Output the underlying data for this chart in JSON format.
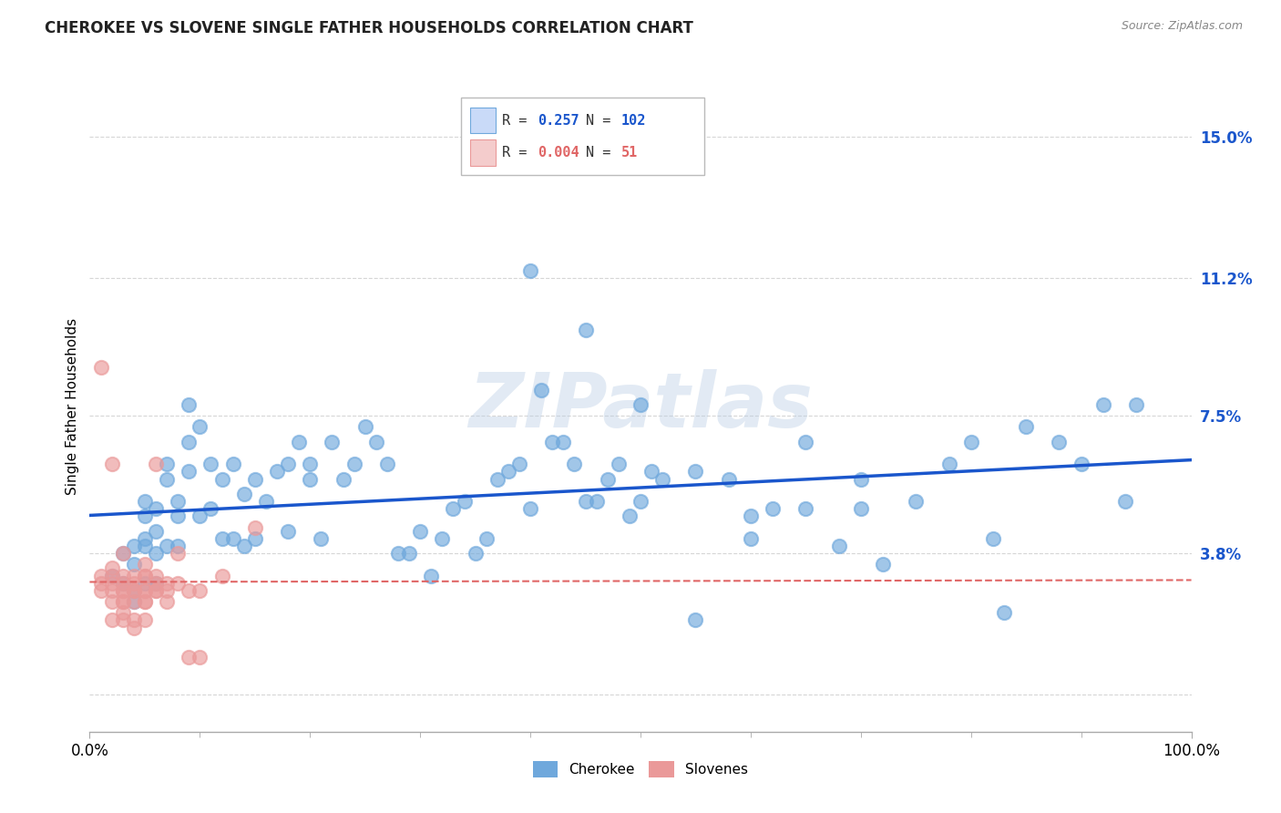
{
  "title": "CHEROKEE VS SLOVENE SINGLE FATHER HOUSEHOLDS CORRELATION CHART",
  "source": "Source: ZipAtlas.com",
  "ylabel": "Single Father Households",
  "ytick_values": [
    0.0,
    0.038,
    0.075,
    0.112,
    0.15
  ],
  "ytick_labels": [
    "",
    "3.8%",
    "7.5%",
    "11.2%",
    "15.0%"
  ],
  "xtick_values": [
    0.0,
    1.0
  ],
  "xtick_labels": [
    "0.0%",
    "100.0%"
  ],
  "xlim": [
    0.0,
    1.0
  ],
  "ylim": [
    -0.01,
    0.165
  ],
  "cherokee_R": 0.257,
  "cherokee_N": 102,
  "slovene_R": 0.004,
  "slovene_N": 51,
  "cherokee_color": "#6fa8dc",
  "slovene_color": "#ea9999",
  "cherokee_line_color": "#1a56cc",
  "slovene_line_color": "#e06666",
  "legend_cherokee_bg": "#c9daf8",
  "legend_slovene_bg": "#f4cccc",
  "background_color": "#ffffff",
  "grid_color": "#cccccc",
  "watermark_text": "ZIPatlas",
  "cherokee_x": [
    0.02,
    0.03,
    0.03,
    0.04,
    0.04,
    0.04,
    0.04,
    0.05,
    0.05,
    0.05,
    0.05,
    0.05,
    0.06,
    0.06,
    0.06,
    0.06,
    0.07,
    0.07,
    0.07,
    0.08,
    0.08,
    0.08,
    0.09,
    0.09,
    0.09,
    0.1,
    0.1,
    0.11,
    0.11,
    0.12,
    0.12,
    0.13,
    0.13,
    0.14,
    0.14,
    0.15,
    0.15,
    0.16,
    0.17,
    0.18,
    0.18,
    0.19,
    0.2,
    0.2,
    0.21,
    0.22,
    0.23,
    0.24,
    0.25,
    0.26,
    0.27,
    0.28,
    0.29,
    0.3,
    0.31,
    0.32,
    0.33,
    0.34,
    0.35,
    0.36,
    0.37,
    0.38,
    0.39,
    0.4,
    0.41,
    0.42,
    0.43,
    0.44,
    0.45,
    0.46,
    0.47,
    0.48,
    0.49,
    0.5,
    0.51,
    0.52,
    0.55,
    0.58,
    0.6,
    0.62,
    0.65,
    0.68,
    0.7,
    0.72,
    0.75,
    0.78,
    0.8,
    0.82,
    0.85,
    0.88,
    0.9,
    0.92,
    0.94,
    0.4,
    0.45,
    0.5,
    0.55,
    0.6,
    0.65,
    0.7,
    0.83,
    0.95
  ],
  "cherokee_y": [
    0.032,
    0.038,
    0.03,
    0.035,
    0.04,
    0.028,
    0.025,
    0.042,
    0.048,
    0.04,
    0.03,
    0.052,
    0.038,
    0.044,
    0.03,
    0.05,
    0.058,
    0.062,
    0.04,
    0.048,
    0.04,
    0.052,
    0.068,
    0.078,
    0.06,
    0.072,
    0.048,
    0.05,
    0.062,
    0.042,
    0.058,
    0.062,
    0.042,
    0.04,
    0.054,
    0.058,
    0.042,
    0.052,
    0.06,
    0.044,
    0.062,
    0.068,
    0.058,
    0.062,
    0.042,
    0.068,
    0.058,
    0.062,
    0.072,
    0.068,
    0.062,
    0.038,
    0.038,
    0.044,
    0.032,
    0.042,
    0.05,
    0.052,
    0.038,
    0.042,
    0.058,
    0.06,
    0.062,
    0.114,
    0.082,
    0.068,
    0.068,
    0.062,
    0.098,
    0.052,
    0.058,
    0.062,
    0.048,
    0.052,
    0.06,
    0.058,
    0.02,
    0.058,
    0.042,
    0.05,
    0.068,
    0.04,
    0.058,
    0.035,
    0.052,
    0.062,
    0.068,
    0.042,
    0.072,
    0.068,
    0.062,
    0.078,
    0.052,
    0.05,
    0.052,
    0.078,
    0.06,
    0.048,
    0.05,
    0.05,
    0.022,
    0.078
  ],
  "slovene_x": [
    0.01,
    0.01,
    0.01,
    0.01,
    0.02,
    0.02,
    0.02,
    0.02,
    0.02,
    0.02,
    0.02,
    0.03,
    0.03,
    0.03,
    0.03,
    0.03,
    0.03,
    0.03,
    0.03,
    0.03,
    0.04,
    0.04,
    0.04,
    0.04,
    0.04,
    0.04,
    0.04,
    0.05,
    0.05,
    0.05,
    0.05,
    0.05,
    0.05,
    0.05,
    0.05,
    0.06,
    0.06,
    0.06,
    0.06,
    0.06,
    0.07,
    0.07,
    0.07,
    0.08,
    0.08,
    0.09,
    0.09,
    0.1,
    0.1,
    0.12,
    0.15
  ],
  "slovene_y": [
    0.088,
    0.032,
    0.03,
    0.028,
    0.062,
    0.03,
    0.028,
    0.025,
    0.02,
    0.032,
    0.034,
    0.028,
    0.03,
    0.025,
    0.032,
    0.038,
    0.02,
    0.028,
    0.022,
    0.025,
    0.03,
    0.028,
    0.025,
    0.032,
    0.028,
    0.02,
    0.018,
    0.025,
    0.028,
    0.032,
    0.035,
    0.02,
    0.032,
    0.025,
    0.028,
    0.028,
    0.062,
    0.028,
    0.03,
    0.032,
    0.028,
    0.03,
    0.025,
    0.038,
    0.03,
    0.028,
    0.01,
    0.01,
    0.028,
    0.032,
    0.045
  ]
}
